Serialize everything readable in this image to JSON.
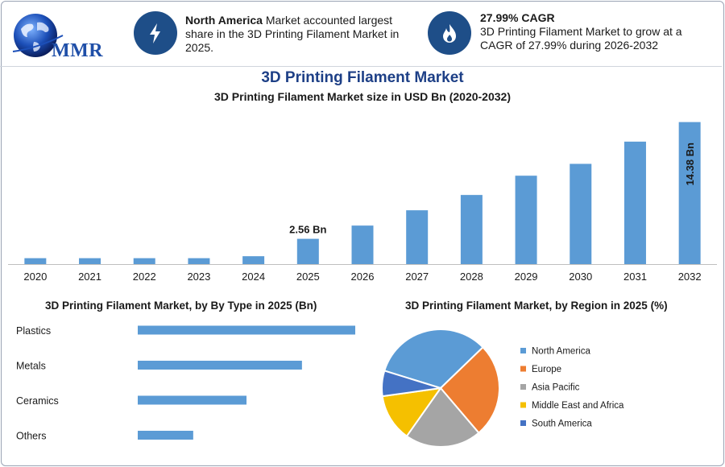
{
  "header": {
    "logo_text": "MMR",
    "info1": {
      "bold": "North America",
      "text": " Market accounted largest share in the 3D Printing Filament Market in 2025."
    },
    "info2": {
      "bold": "27.99% CAGR",
      "text": "3D Printing Filament Market to grow at a CAGR of 27.99% during 2026-2032"
    },
    "icon1": "lightning-bolt-icon",
    "icon2": "flame-icon"
  },
  "main_title": "3D Printing Filament Market",
  "colors": {
    "bar": "#5b9bd5",
    "navy": "#1e4e88",
    "title_blue": "#1d3f86"
  },
  "chart_data": [
    {
      "type": "bar",
      "title": "3D Printing Filament Market size in USD Bn (2020-2032)",
      "categories": [
        "2020",
        "2021",
        "2022",
        "2023",
        "2024",
        "2025",
        "2026",
        "2027",
        "2028",
        "2029",
        "2030",
        "2031",
        "2032"
      ],
      "values": [
        0.6,
        0.6,
        0.6,
        0.6,
        0.8,
        2.56,
        3.9,
        5.45,
        7.0,
        8.95,
        10.15,
        12.4,
        14.38
      ],
      "ylim": [
        0,
        15
      ],
      "annotations": [
        {
          "category": "2025",
          "label": "2.56 Bn",
          "position": "above"
        },
        {
          "category": "2032",
          "label": "14.38 Bn",
          "position": "inside-vertical"
        }
      ]
    },
    {
      "type": "bar",
      "orientation": "horizontal",
      "title": "3D Printing Filament Market, by By Type in 2025 (Bn)",
      "categories": [
        "Plastics",
        "Metals",
        "Ceramics",
        "Others"
      ],
      "values": [
        100,
        75.5,
        50,
        25.5
      ]
    },
    {
      "type": "pie",
      "title": "3D Printing Filament Market, by Region in 2025 (%)",
      "labels": [
        "North America",
        "Europe",
        "Asia Pacific",
        "Middle East and Africa",
        "South America"
      ],
      "values": [
        33,
        26,
        21,
        13,
        7
      ],
      "colors": [
        "#5b9bd5",
        "#ed7d31",
        "#a5a5a5",
        "#f5c000",
        "#4472c4"
      ],
      "legend": "right"
    }
  ]
}
